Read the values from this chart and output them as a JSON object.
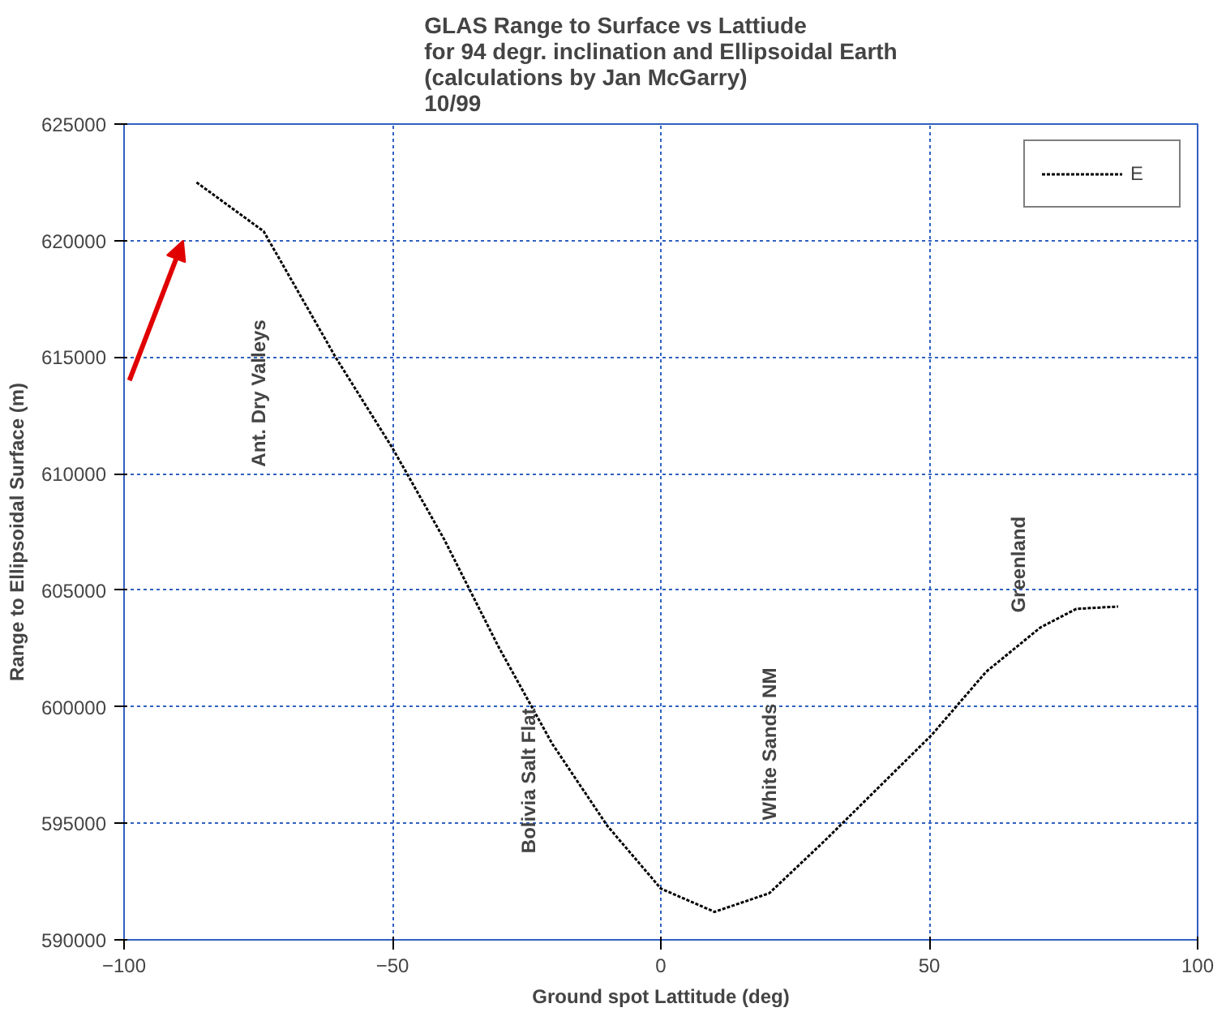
{
  "chart_data": {
    "type": "line",
    "title": "GLAS Range to Surface vs Lattiude\nfor 94 degr. inclination and Ellipsoidal Earth\n(calculations by Jan McGarry)\n10/99",
    "xlabel": "Ground spot Lattitude (deg)",
    "ylabel": "Range to Ellipsoidal Surface (m)",
    "x": [
      -86.5,
      -74,
      -60.6,
      -50,
      -40.4,
      -30.3,
      -20.2,
      -10,
      0,
      10,
      20.2,
      30.3,
      40.4,
      50.5,
      60.6,
      70.7,
      77.4,
      85.2
    ],
    "series": [
      {
        "name": "E",
        "color": "#000000",
        "values": [
          622500,
          620400,
          615000,
          611100,
          607200,
          602600,
          598400,
          594900,
          592200,
          591200,
          592000,
          594200,
          596500,
          598800,
          601500,
          603400,
          604200,
          604300
        ]
      }
    ],
    "xlim": [
      -100,
      100
    ],
    "xticks": [
      -100,
      -50,
      0,
      50,
      100
    ],
    "ylim": [
      590000,
      625000
    ],
    "yticks": [
      590000,
      595000,
      600000,
      605000,
      610000,
      615000,
      620000,
      625000
    ],
    "annotations": [
      "Ant. Dry Valleys",
      "Bolivia Salt Flat",
      "White Sands NM",
      "Greenland"
    ],
    "grid": true,
    "legend": "top right",
    "line_style": "dotted",
    "marker": "none"
  }
}
